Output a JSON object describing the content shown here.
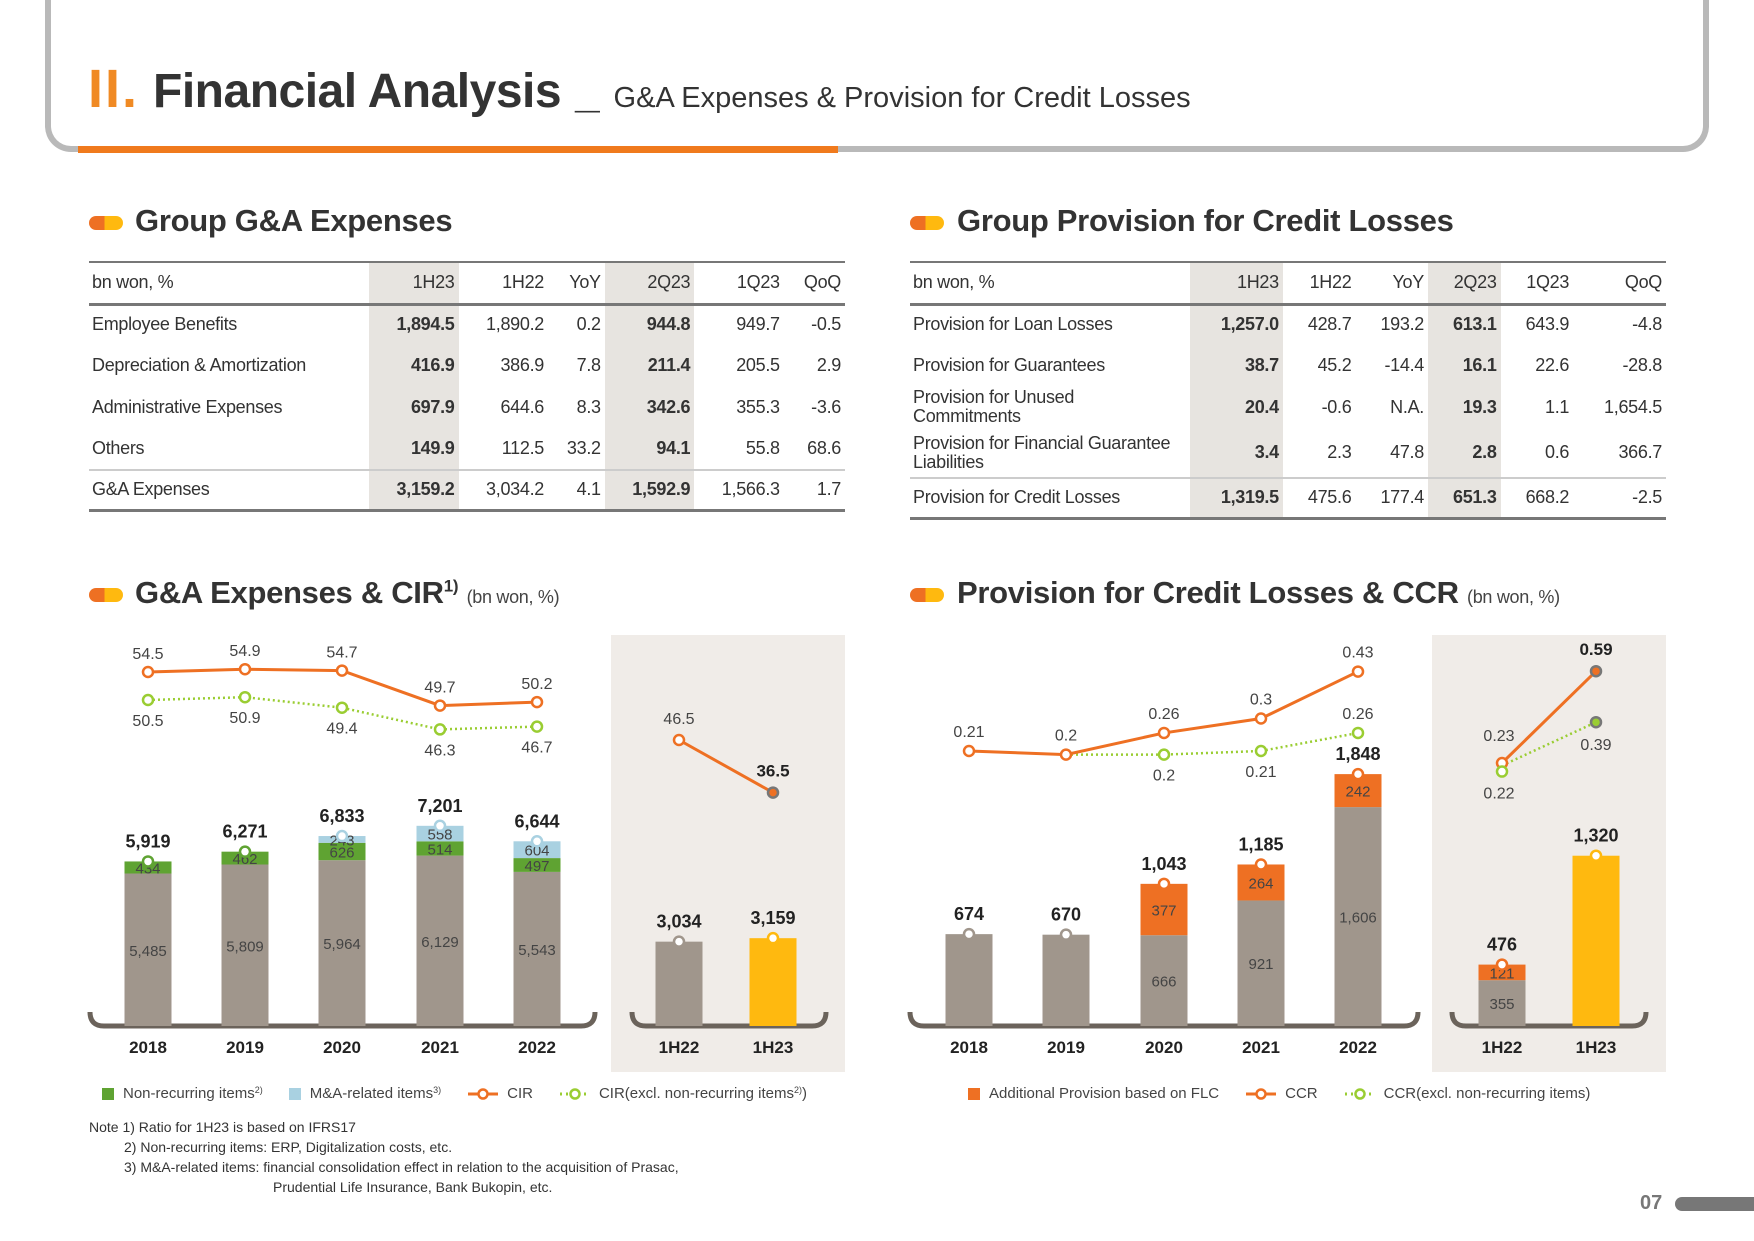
{
  "header": {
    "roman": "II.",
    "title": "Financial Analysis",
    "separator": "_",
    "subtitle": "G&A Expenses & Provision for Credit Losses"
  },
  "ga_table": {
    "title": "Group G&A Expenses",
    "columns": [
      "bn won, %",
      "1H23",
      "1H22",
      "YoY",
      "2Q23",
      "1Q23",
      "QoQ"
    ],
    "rows": [
      [
        "Employee Benefits",
        "1,894.5",
        "1,890.2",
        "0.2",
        "944.8",
        "949.7",
        "-0.5"
      ],
      [
        "Depreciation & Amortization",
        "416.9",
        "386.9",
        "7.8",
        "211.4",
        "205.5",
        "2.9"
      ],
      [
        "Administrative Expenses",
        "697.9",
        "644.6",
        "8.3",
        "342.6",
        "355.3",
        "-3.6"
      ],
      [
        "Others",
        "149.9",
        "112.5",
        "33.2",
        "94.1",
        "55.8",
        "68.6"
      ],
      [
        "G&A Expenses",
        "3,159.2",
        "3,034.2",
        "4.1",
        "1,592.9",
        "1,566.3",
        "1.7"
      ]
    ]
  },
  "pcl_table": {
    "title": "Group Provision for Credit Losses",
    "columns": [
      "bn won, %",
      "1H23",
      "1H22",
      "YoY",
      "2Q23",
      "1Q23",
      "QoQ"
    ],
    "rows": [
      [
        "Provision for Loan Losses",
        "1,257.0",
        "428.7",
        "193.2",
        "613.1",
        "643.9",
        "-4.8"
      ],
      [
        "Provision for Guarantees",
        "38.7",
        "45.2",
        "-14.4",
        "16.1",
        "22.6",
        "-28.8"
      ],
      [
        "Provision for Unused Commitments",
        "20.4",
        "-0.6",
        "N.A.",
        "19.3",
        "1.1",
        "1,654.5"
      ],
      [
        "Provision for Financial Guarantee Liabilities",
        "3.4",
        "2.3",
        "47.8",
        "2.8",
        "0.6",
        "366.7"
      ],
      [
        "Provision for Credit Losses",
        "1,319.5",
        "475.6",
        "177.4",
        "651.3",
        "668.2",
        "-2.5"
      ]
    ]
  },
  "chart_data": [
    {
      "type": "bar",
      "title": "G&A Expenses & CIR",
      "title_sup": "1)",
      "unit": "(bn won, %)",
      "categories": [
        "2018",
        "2019",
        "2020",
        "2021",
        "2022"
      ],
      "series": [
        {
          "key": "base",
          "values": [
            5485,
            5809,
            5964,
            6129,
            5543
          ],
          "color": "#a0968c"
        },
        {
          "key": "non_recurring",
          "name": "Non-recurring items",
          "name_sup": "2)",
          "values": [
            434,
            462,
            626,
            514,
            497
          ],
          "color": "#5fa332"
        },
        {
          "key": "ma_related",
          "name": "M&A-related items",
          "name_sup": "3)",
          "values": [
            null,
            null,
            243,
            558,
            604
          ],
          "color": "#a9d1e1"
        }
      ],
      "totals": [
        "5,919",
        "6,271",
        "6,833",
        "7,201",
        "6,644"
      ],
      "lines": [
        {
          "key": "cir",
          "name": "CIR",
          "values": [
            54.5,
            54.9,
            54.7,
            49.7,
            50.2
          ],
          "color": "#ee7023",
          "style": "solid"
        },
        {
          "key": "cir_excl",
          "name": "CIR(excl. non-recurring items",
          "name_sup": "2)",
          "name_close": ")",
          "values": [
            50.5,
            50.9,
            49.4,
            46.3,
            46.7
          ],
          "color": "#9acd32",
          "style": "dotted"
        }
      ],
      "half": {
        "categories": [
          "1H22",
          "1H23"
        ],
        "values": [
          3034,
          3159
        ],
        "totals": [
          "3,034",
          "3,159"
        ],
        "colors": [
          "#a0968c",
          "#ffb90f"
        ],
        "cir": [
          46.5,
          36.5
        ]
      }
    },
    {
      "type": "bar",
      "title": "Provision for Credit Losses & CCR",
      "unit": "(bn won, %)",
      "categories": [
        "2018",
        "2019",
        "2020",
        "2021",
        "2022"
      ],
      "series": [
        {
          "key": "base",
          "values": [
            674,
            670,
            666,
            921,
            1606
          ],
          "color": "#a0968c"
        },
        {
          "key": "flc",
          "name": "Additional Provision based on FLC",
          "values": [
            null,
            null,
            377,
            264,
            242
          ],
          "color": "#ee7023"
        }
      ],
      "totals": [
        "674",
        "670",
        "1,043",
        "1,185",
        "1,848"
      ],
      "lines": [
        {
          "key": "ccr",
          "name": "CCR",
          "values": [
            0.21,
            0.2,
            0.26,
            0.3,
            0.43
          ],
          "color": "#ee7023",
          "style": "solid"
        },
        {
          "key": "ccr_excl",
          "name": "CCR(excl. non-recurring items)",
          "values": [
            null,
            0.2,
            0.2,
            0.21,
            0.26
          ],
          "color": "#9acd32",
          "style": "dotted"
        }
      ],
      "half": {
        "categories": [
          "1H22",
          "1H23"
        ],
        "base": [
          355,
          1320
        ],
        "flc": [
          121,
          null
        ],
        "totals": [
          "476",
          "1,320"
        ],
        "colors": [
          "#a0968c",
          "#ffb90f"
        ],
        "ccr": [
          0.23,
          0.59
        ],
        "ccr_excl": [
          0.22,
          0.39
        ]
      }
    }
  ],
  "notes": {
    "n1": "Note 1) Ratio for 1H23 is based on IFRS17",
    "n2": "2) Non-recurring items: ERP, Digitalization costs, etc.",
    "n3a": "3) M&A-related items: financial consolidation effect in relation to the acquisition of Prasac,",
    "n3b": "Prudential Life Insurance, Bank Bukopin, etc."
  },
  "page_number": "07"
}
